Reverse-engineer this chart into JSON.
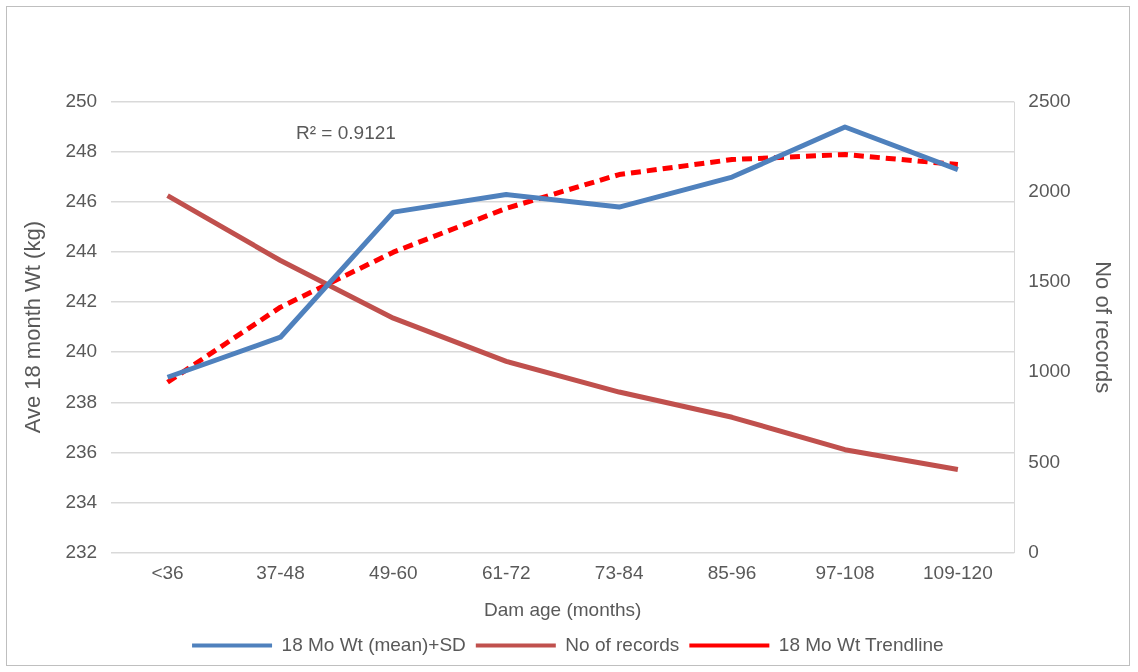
{
  "chart_data": {
    "type": "line",
    "xlabel": "Dam age (months)",
    "ylabel": "Ave 18 month Wt (kg)",
    "y2label": "No of records",
    "categories": [
      "<36",
      "37-48",
      "49-60",
      "61-72",
      "73-84",
      "85-96",
      "97-108",
      "109-120"
    ],
    "series": [
      {
        "name": "18 Mo Wt (mean)+SD",
        "color": "#4f81bd",
        "values": [
          239.0,
          240.6,
          245.6,
          246.3,
          245.8,
          247.0,
          249.0,
          247.3
        ]
      },
      {
        "name": "No of records",
        "color": "#c0504d",
        "axis": "y2",
        "values": [
          1980,
          1620,
          1300,
          1060,
          890,
          750,
          570,
          460
        ]
      },
      {
        "name": "18 Mo Wt Trendline",
        "color": "#ff0000",
        "line_style": "dashed",
        "values": [
          238.8,
          241.8,
          244.0,
          245.75,
          247.1,
          247.7,
          247.9,
          247.5
        ]
      }
    ],
    "ylim": [
      232,
      250
    ],
    "yticks": [
      232,
      234,
      236,
      238,
      240,
      242,
      244,
      246,
      248,
      250
    ],
    "y2lim": [
      0,
      2500
    ],
    "y2ticks": [
      0,
      500,
      1000,
      1500,
      2000,
      2500
    ],
    "annotations": [
      "R² = 0.9121"
    ],
    "grid": "y",
    "legend": "bottom",
    "marker": "none"
  }
}
